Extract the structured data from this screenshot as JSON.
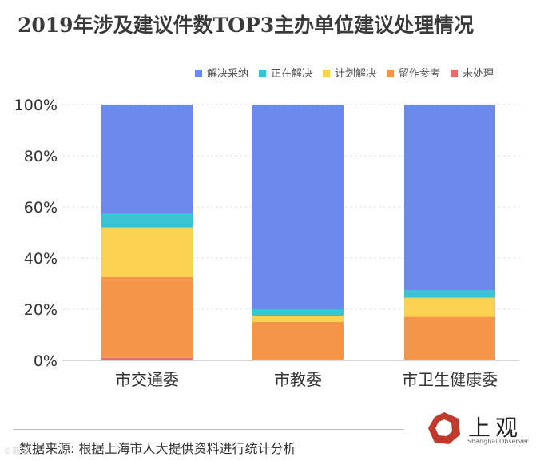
{
  "chart_data": {
    "type": "bar",
    "stacked": true,
    "title": "2019年涉及建议件数TOP3主办单位建议处理情况",
    "categories": [
      "市交通委",
      "市教委",
      "市卫生健康委"
    ],
    "series": [
      {
        "name": "未处理",
        "color": "#e06f6a",
        "values": [
          1,
          0,
          0
        ]
      },
      {
        "name": "留作参考",
        "color": "#f4954a",
        "values": [
          31.5,
          15,
          17
        ]
      },
      {
        "name": "计划解决",
        "color": "#fbd24f",
        "values": [
          19.5,
          2.5,
          7.5
        ]
      },
      {
        "name": "正在解决",
        "color": "#37c4d3",
        "values": [
          5.5,
          2.5,
          3
        ]
      },
      {
        "name": "解决采纳",
        "color": "#6c89ee",
        "values": [
          42.5,
          80,
          72.5
        ]
      }
    ],
    "y_ticks": [
      "0%",
      "20%",
      "40%",
      "60%",
      "80%",
      "100%"
    ],
    "ylim": [
      0,
      100
    ],
    "legend_position": "top-right",
    "grid": true
  },
  "source": "数据来源: 根据上海市人大提供资料进行统计分析",
  "logo": {
    "text_cn": "上观",
    "text_en": "Shanghai Observer"
  },
  "watermark": "©新浪"
}
